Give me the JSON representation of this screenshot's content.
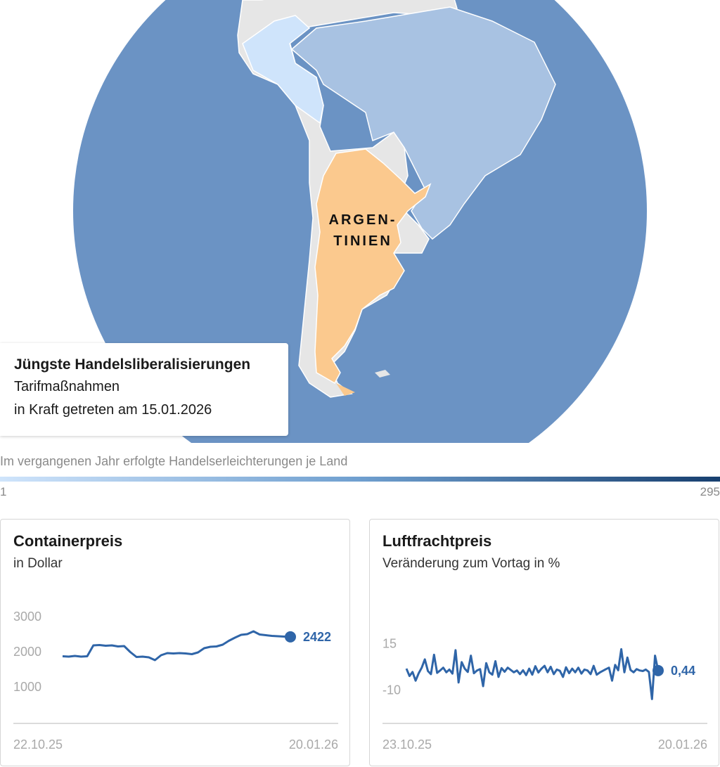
{
  "map": {
    "country_label_line1": "ARGEN-",
    "country_label_line2": "TINIEN",
    "colors": {
      "ocean": "#6b93c4",
      "highlight": "#fbc98e",
      "land_neutral": "#e6e6e6",
      "land_light": "#cfe4fb",
      "land_mid": "#a8c2e2"
    },
    "info": {
      "title": "Jüngste Handelsliberalisierungen",
      "line1": "Tarifmaßnahmen",
      "line2": "in Kraft getreten am 15.01.2026"
    }
  },
  "legend": {
    "title": "Im vergangenen Jahr erfolgte Handelserleichterungen je Land",
    "min": "1",
    "max": "295"
  },
  "chart_data": [
    {
      "type": "line",
      "title": "Containerpreis",
      "subtitle": "in Dollar",
      "x_start_label": "22.10.25",
      "x_end_label": "20.01.26",
      "ytick_labels": [
        "3000",
        "2000",
        "1000"
      ],
      "yticks": [
        3000,
        2000,
        1000
      ],
      "ylim": [
        0,
        3000
      ],
      "end_label": "2422",
      "color": "#2f65a8",
      "values": [
        1870,
        1860,
        1880,
        1860,
        1870,
        2180,
        2190,
        2170,
        2180,
        2150,
        2160,
        1990,
        1850,
        1860,
        1840,
        1760,
        1900,
        1960,
        1950,
        1960,
        1950,
        1930,
        1980,
        2100,
        2140,
        2150,
        2200,
        2310,
        2400,
        2480,
        2500,
        2580,
        2490,
        2470,
        2450,
        2440,
        2430,
        2422
      ]
    },
    {
      "type": "line",
      "title": "Luftfrachtpreis",
      "subtitle": "Veränderung zum Vortag in %",
      "x_start_label": "23.10.25",
      "x_end_label": "20.01.26",
      "ytick_labels": [
        "15",
        "-10"
      ],
      "yticks": [
        15,
        -10
      ],
      "ylim": [
        -10,
        15
      ],
      "end_label": "0,44",
      "color": "#2f65a8",
      "values": [
        1.5,
        -2.5,
        -0.3,
        -5,
        -1,
        2,
        6.5,
        0.2,
        -1.5,
        9,
        -0.8,
        0.5,
        2,
        -0.5,
        1,
        -1.2,
        11.5,
        -6,
        5,
        1.5,
        -0.3,
        8.5,
        -1,
        0.5,
        1.2,
        -8,
        4.5,
        -0.5,
        -1.8,
        5.5,
        -3,
        1.8,
        -0.2,
        2,
        0.8,
        -0.5,
        0.5,
        -1.5,
        0.6,
        -2,
        1.5,
        -1.8,
        2.8,
        -0.6,
        1.5,
        3,
        -0.5,
        2.5,
        -1.5,
        1,
        0.3,
        -3,
        2.2,
        -1,
        1.5,
        -0.5,
        2,
        -1.2,
        1,
        0.5,
        -1.5,
        3,
        -1.8,
        -0.6,
        0.3,
        1.2,
        2,
        -5,
        3.5,
        0.6,
        12,
        -0.5,
        7.5,
        0.8,
        -0.5,
        1.2,
        0.5,
        0.2,
        1,
        -0.3,
        -15,
        8.5,
        0.44
      ]
    }
  ]
}
